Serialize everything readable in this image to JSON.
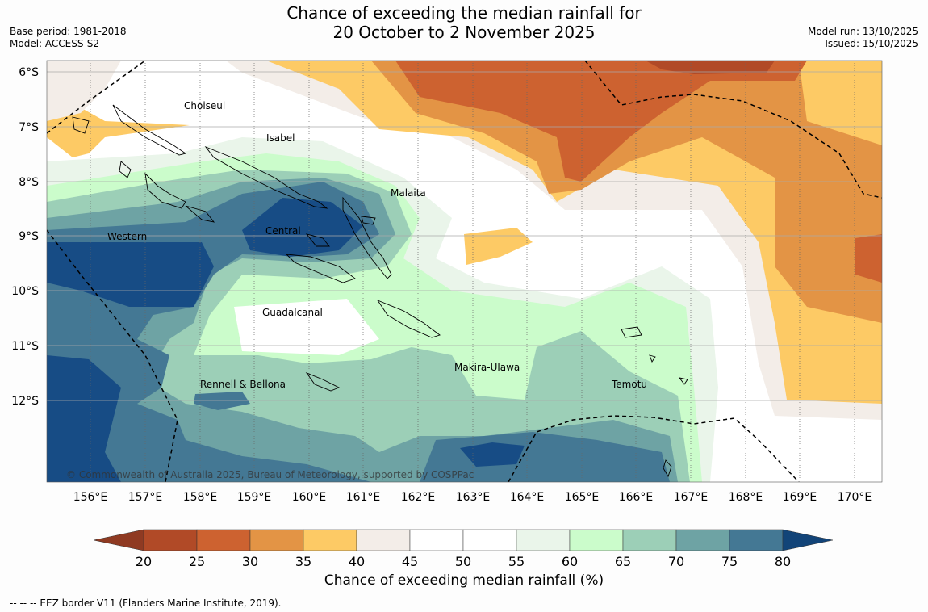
{
  "header": {
    "title_line1": "Chance of exceeding the median rainfall for",
    "title_line2": "20 October to 2 November 2025",
    "base_period": "Base period: 1981-2018",
    "model": "Model: ACCESS-S2",
    "model_run": "Model run: 13/10/2025",
    "issued": "Issued: 15/10/2025"
  },
  "map": {
    "lat_ticks": [
      "6°S",
      "7°S",
      "8°S",
      "9°S",
      "10°S",
      "11°S",
      "12°S"
    ],
    "lon_ticks": [
      "156°E",
      "157°E",
      "158°E",
      "159°E",
      "160°E",
      "161°E",
      "162°E",
      "163°E",
      "164°E",
      "165°E",
      "166°E",
      "167°E",
      "168°E",
      "169°E",
      "170°E"
    ],
    "regions": [
      "Choiseul",
      "Isabel",
      "Malaita",
      "Western",
      "Central",
      "Guadalcanal",
      "Makira-Ulawa",
      "Rennell & Bellona",
      "Temotu"
    ],
    "copyright": "© Commonwealth of Australia 2025, Bureau of Meteorology, supported by COSPPac"
  },
  "colorbar": {
    "ticks": [
      "20",
      "25",
      "30",
      "35",
      "40",
      "45",
      "50",
      "55",
      "60",
      "65",
      "70",
      "75",
      "80"
    ],
    "colors": [
      "#b14a27",
      "#cd6230",
      "#e39445",
      "#fdca65",
      "#f3ede8",
      "#ffffff",
      "#ffffff",
      "#eaf5ea",
      "#cbfccb",
      "#9ccfb7",
      "#6ea3a4",
      "#447894",
      "#174c85"
    ],
    "low_color": "#8f3a22",
    "high_color": "#124478",
    "label": "Chance of exceeding median rainfall (%)"
  },
  "footer": {
    "eez_note": "--  --  -- EEZ border V11 (Flanders Marine Institute, 2019)."
  }
}
